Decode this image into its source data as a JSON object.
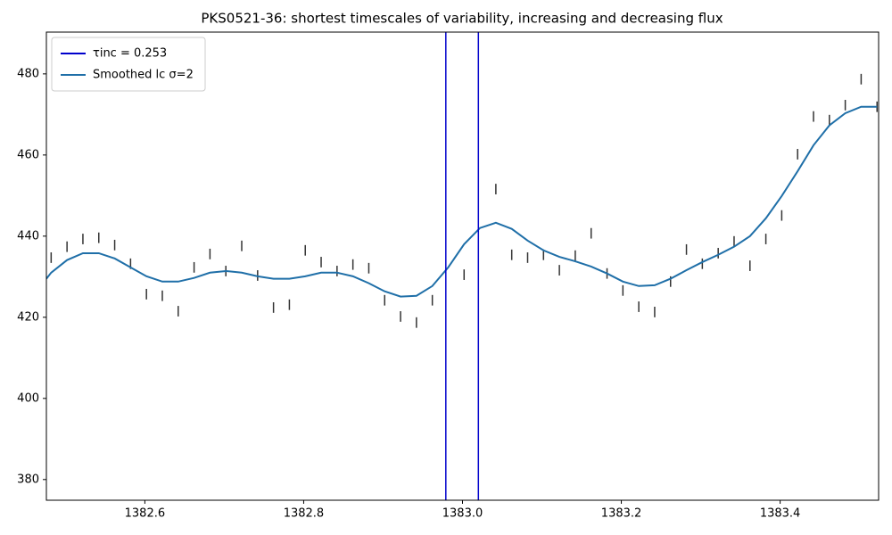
{
  "chart_data": {
    "type": "line",
    "title": "PKS0521-36: shortest timescales of variability, increasing and decreasing flux",
    "xlim": [
      1382.476,
      1383.524
    ],
    "ylim": [
      374.9,
      490.3
    ],
    "xticks": [
      1382.6,
      1382.8,
      {
        "value": 1383.0,
        "label": "1383.0"
      },
      1383.2,
      1383.4
    ],
    "yticks": [
      380,
      400,
      420,
      440,
      460,
      480
    ],
    "legend": "upper left",
    "series": [
      {
        "kind": "errorbar",
        "color": "#333333",
        "x": [
          1382.482,
          1382.502,
          1382.522,
          1382.542,
          1382.562,
          1382.582,
          1382.602,
          1382.622,
          1382.642,
          1382.662,
          1382.682,
          1382.702,
          1382.722,
          1382.742,
          1382.762,
          1382.782,
          1382.802,
          1382.822,
          1382.842,
          1382.862,
          1382.882,
          1382.902,
          1382.922,
          1382.942,
          1382.962,
          1383.002,
          1383.042,
          1383.062,
          1383.082,
          1383.102,
          1383.122,
          1383.142,
          1383.162,
          1383.182,
          1383.202,
          1383.222,
          1383.242,
          1383.262,
          1383.282,
          1383.302,
          1383.322,
          1383.342,
          1383.362,
          1383.382,
          1383.402,
          1383.422,
          1383.442,
          1383.462,
          1383.482,
          1383.502,
          1383.522
        ],
        "values": [
          434.7,
          437.4,
          439.3,
          439.6,
          437.8,
          433.2,
          425.7,
          425.3,
          421.5,
          432.3,
          435.6,
          431.4,
          437.6,
          430.3,
          422.4,
          423.1,
          436.5,
          433.6,
          431.4,
          433.0,
          432.1,
          424.2,
          420.2,
          418.7,
          424.2,
          430.5,
          451.6,
          435.4,
          434.7,
          435.4,
          431.6,
          435.2,
          440.7,
          430.8,
          426.6,
          422.6,
          421.3,
          428.8,
          436.7,
          433.2,
          435.8,
          438.7,
          432.7,
          439.3,
          445.1,
          460.2,
          469.5,
          468.6,
          472.3,
          478.7,
          471.9
        ],
        "errors": [
          1.3,
          1.3,
          1.3,
          1.3,
          1.3,
          1.3,
          1.3,
          1.3,
          1.3,
          1.3,
          1.3,
          1.3,
          1.3,
          1.3,
          1.3,
          1.3,
          1.3,
          1.3,
          1.3,
          1.3,
          1.3,
          1.3,
          1.3,
          1.3,
          1.3,
          1.3,
          1.3,
          1.3,
          1.3,
          1.3,
          1.3,
          1.3,
          1.3,
          1.3,
          1.3,
          1.3,
          1.3,
          1.3,
          1.3,
          1.3,
          1.3,
          1.3,
          1.3,
          1.3,
          1.3,
          1.3,
          1.3,
          1.3,
          1.3,
          1.3,
          1.3
        ]
      },
      {
        "kind": "line",
        "name": "Smoothed lc σ=2",
        "color": "#1f6fa8",
        "x": [
          1382.476,
          1382.482,
          1382.502,
          1382.522,
          1382.542,
          1382.562,
          1382.582,
          1382.602,
          1382.622,
          1382.642,
          1382.662,
          1382.682,
          1382.702,
          1382.722,
          1382.742,
          1382.762,
          1382.782,
          1382.802,
          1382.822,
          1382.842,
          1382.862,
          1382.882,
          1382.902,
          1382.922,
          1382.942,
          1382.962,
          1382.982,
          1383.002,
          1383.022,
          1383.042,
          1383.062,
          1383.082,
          1383.102,
          1383.122,
          1383.142,
          1383.162,
          1383.182,
          1383.202,
          1383.222,
          1383.242,
          1383.262,
          1383.282,
          1383.302,
          1383.322,
          1383.342,
          1383.362,
          1383.382,
          1383.402,
          1383.422,
          1383.442,
          1383.462,
          1383.482,
          1383.502,
          1383.522
        ],
        "values": [
          429.5,
          431.0,
          434.1,
          435.8,
          435.8,
          434.5,
          432.3,
          430.1,
          428.8,
          428.8,
          429.7,
          431.0,
          431.4,
          431.0,
          430.1,
          429.5,
          429.5,
          430.1,
          431.0,
          431.0,
          430.1,
          428.4,
          426.4,
          425.1,
          425.3,
          427.7,
          432.3,
          438.0,
          442.0,
          443.3,
          441.8,
          438.9,
          436.5,
          434.9,
          433.8,
          432.5,
          430.8,
          428.8,
          427.7,
          427.9,
          429.5,
          431.6,
          433.6,
          435.4,
          437.4,
          440.0,
          444.4,
          449.9,
          456.0,
          462.4,
          467.3,
          470.3,
          471.9,
          471.9
        ]
      }
    ],
    "vlines": {
      "name": "τinc = 0.253",
      "color": "#0000cc",
      "x": [
        1382.979,
        1383.02
      ]
    }
  }
}
